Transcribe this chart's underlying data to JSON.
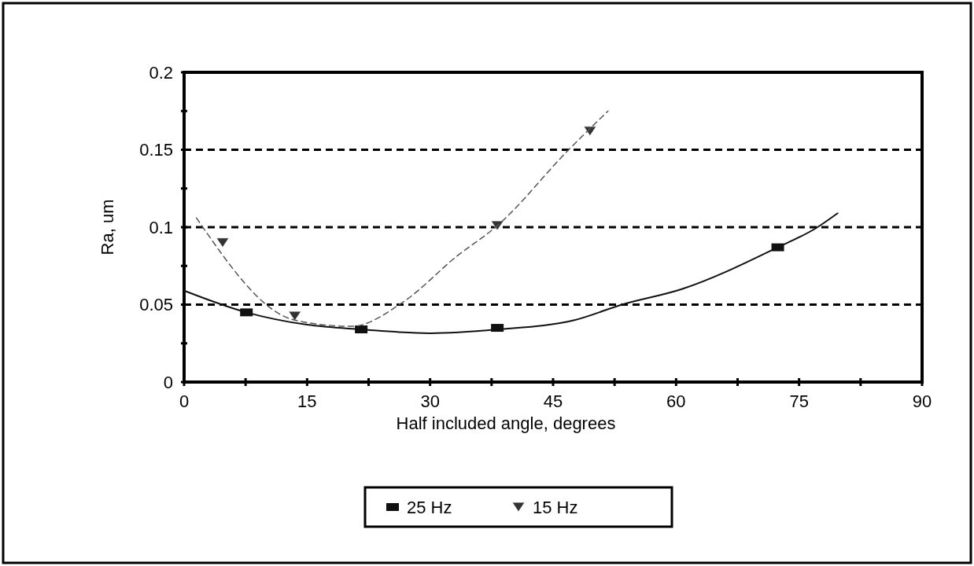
{
  "chart_data": {
    "type": "scatter",
    "xlabel": "Half included angle, degrees",
    "ylabel": "Ra, um",
    "xlim": [
      0,
      90
    ],
    "xticks": [
      0,
      {
        "value": 7.5,
        "label": null
      },
      15,
      {
        "value": 22.5,
        "label": null
      },
      30,
      {
        "value": 37.5,
        "label": null
      },
      45,
      {
        "value": 52.5,
        "label": null
      },
      60,
      {
        "value": 67.5,
        "label": null
      },
      75,
      {
        "value": 82.5,
        "label": null
      },
      90
    ],
    "ylim": [
      0,
      0.2
    ],
    "yticks": [
      0,
      {
        "value": 0.025,
        "label": null
      },
      0.05,
      {
        "value": 0.075,
        "label": null
      },
      0.1,
      {
        "value": 0.125,
        "label": null
      },
      0.15,
      {
        "value": 0.175,
        "label": null
      },
      0.2
    ],
    "grid": "y",
    "legend": "bottom",
    "series": [
      {
        "name": "25 Hz",
        "color": "#111111",
        "marker": "square",
        "x": [
          7.6,
          21.6,
          38.2,
          72.4
        ],
        "values": [
          0.045,
          0.034,
          0.035,
          0.087
        ]
      },
      {
        "name": "15 Hz",
        "color": "#333333",
        "marker": "triangle",
        "x": [
          4.7,
          13.5,
          38.2,
          49.5
        ],
        "values": [
          0.09,
          0.0426,
          0.101,
          0.162
        ]
      },
      {
        "type": "line",
        "color": "#111111",
        "marker": "none",
        "line_style": "solid",
        "x": [
          0,
          7.6,
          15,
          21.6,
          30,
          38.2,
          47.6,
          53.4,
          60.7,
          72.4,
          77.1,
          79.7
        ],
        "values": [
          0.059,
          0.045,
          0.037,
          0.034,
          0.0315,
          0.034,
          0.04,
          0.05,
          0.06,
          0.087,
          0.0995,
          0.109
        ]
      },
      {
        "type": "line",
        "color": "#555555",
        "marker": "none",
        "line_style": "dashed",
        "x": [
          1.5,
          13.5,
          20.4,
          26.8,
          33.2,
          38.2,
          46.9,
          51.7
        ],
        "values": [
          0.106,
          0.04,
          0.036,
          0.052,
          0.081,
          0.101,
          0.15,
          0.175
        ]
      }
    ]
  }
}
